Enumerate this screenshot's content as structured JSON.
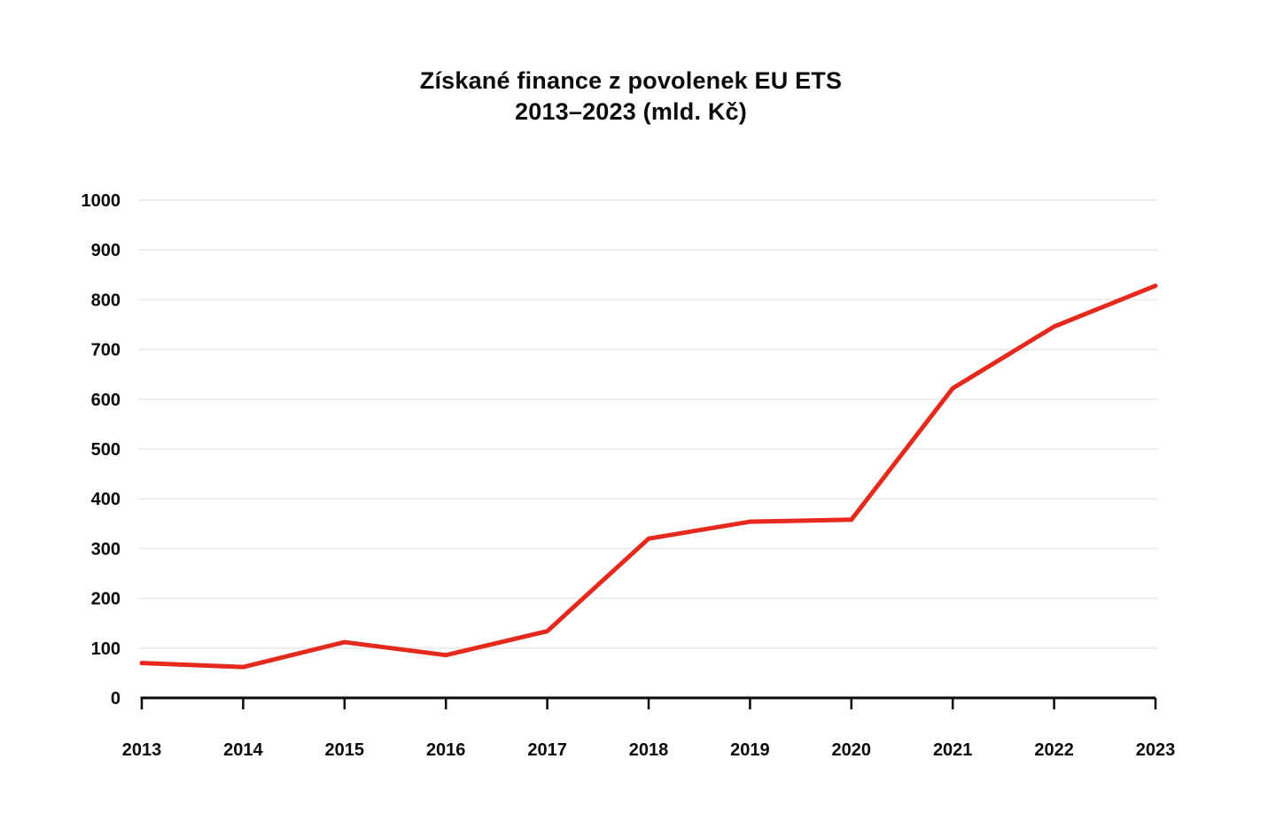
{
  "title": {
    "line1": "Získané finance z povolenek EU ETS",
    "line2": "2013–2023 (mld. Kč)"
  },
  "chart_data": {
    "type": "line",
    "title": "Získané finance z povolenek EU ETS",
    "subtitle": "2013–2023 (mld. Kč)",
    "categories": [
      "2013",
      "2014",
      "2015",
      "2016",
      "2017",
      "2018",
      "2019",
      "2020",
      "2021",
      "2022",
      "2023"
    ],
    "series": [
      {
        "name": "Získané finance z povolenek EU ETS (mld. Kč)",
        "values": [
          70,
          62,
          112,
          86,
          134,
          320,
          354,
          358,
          622,
          746,
          828
        ]
      }
    ],
    "xlabel": "",
    "ylabel": "",
    "ylim": [
      0,
      1000
    ],
    "y_ticks": [
      0,
      100,
      200,
      300,
      400,
      500,
      600,
      700,
      800,
      900,
      1000
    ],
    "grid": "horizontal-light",
    "legend": "none",
    "colors": {
      "line": "#e5291c",
      "grid": "#e8e8e8",
      "axis": "#0b0b0b",
      "text": "#0b0b0b",
      "background": "#ffffff"
    }
  }
}
